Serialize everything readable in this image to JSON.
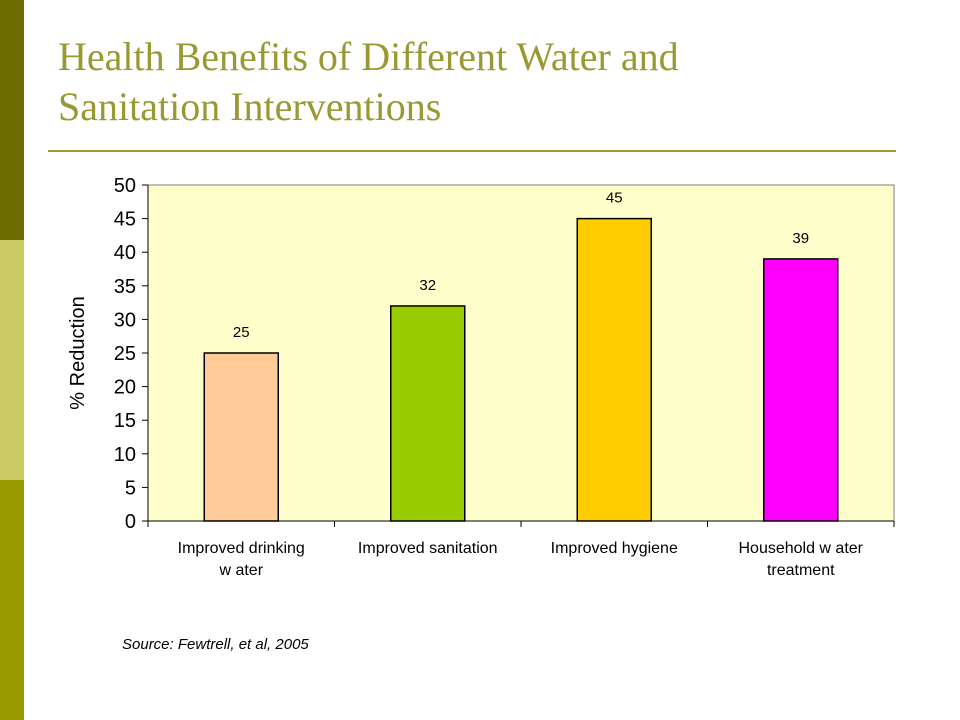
{
  "slide": {
    "title_line1": "Health Benefits of Different Water and",
    "title_line2": "Sanitation Interventions",
    "source": "Source: Fewtrell, et al, 2005"
  },
  "colors": {
    "title": "#999933",
    "plot_background": "#ffffcc",
    "bars": [
      "#ffcc99",
      "#99cc00",
      "#ffcc00",
      "#ff00ff"
    ]
  },
  "chart_data": {
    "type": "bar",
    "ylabel": "% Reduction",
    "xlabel": "",
    "ylim": [
      0,
      50
    ],
    "yticks": [
      0,
      5,
      10,
      15,
      20,
      25,
      30,
      35,
      40,
      45,
      50
    ],
    "categories": [
      [
        "Improved drinking",
        "w ater"
      ],
      [
        "Improved sanitation"
      ],
      [
        "Improved hygiene"
      ],
      [
        "Household w ater",
        "treatment"
      ]
    ],
    "values": [
      25,
      32,
      45,
      39
    ],
    "data_labels": [
      "25",
      "32",
      "45",
      "39"
    ],
    "grid": false,
    "legend": "none"
  }
}
